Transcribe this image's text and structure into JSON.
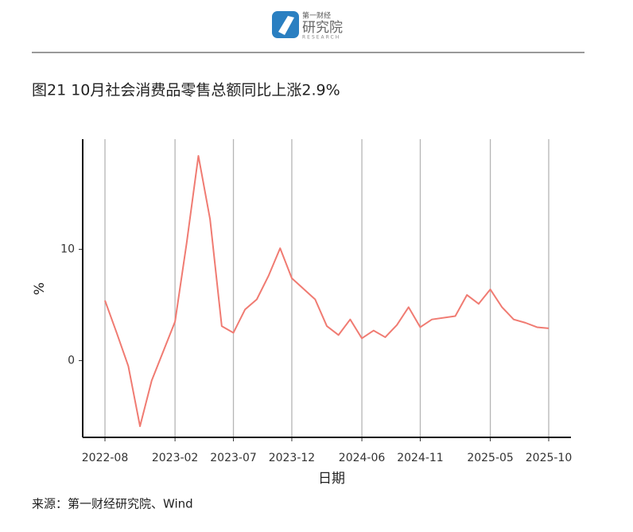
{
  "header": {
    "logo_top": "第一财经",
    "logo_main": "研究院",
    "logo_sub": "RESEARCH"
  },
  "chart_data": {
    "type": "line",
    "title": "图21 10月社会消费品零售总额同比上涨2.9%",
    "x_label": "日期",
    "y_label": "%",
    "x": [
      "2022-08",
      "2022-09",
      "2022-10",
      "2022-11",
      "2022-12",
      "2023-02",
      "2023-03",
      "2023-04",
      "2023-05",
      "2023-06",
      "2023-07",
      "2023-08",
      "2023-09",
      "2023-10",
      "2023-11",
      "2023-12",
      "2024-02",
      "2024-03",
      "2024-04",
      "2024-05",
      "2024-06",
      "2024-07",
      "2024-08",
      "2024-09",
      "2024-10",
      "2024-11",
      "2024-12",
      "2025-02",
      "2025-03",
      "2025-04",
      "2025-05",
      "2025-06",
      "2025-07",
      "2025-08",
      "2025-09",
      "2025-10"
    ],
    "series": [
      {
        "name": "社会消费品零售总额同比",
        "color": "#f07b72",
        "values": [
          5.4,
          2.5,
          -0.5,
          -5.9,
          -1.8,
          3.5,
          10.6,
          18.4,
          12.7,
          3.1,
          2.5,
          4.6,
          5.5,
          7.6,
          10.1,
          7.4,
          5.5,
          3.1,
          2.3,
          3.7,
          2.0,
          2.7,
          2.1,
          3.2,
          4.8,
          3.0,
          3.7,
          4.0,
          5.9,
          5.1,
          6.4,
          4.8,
          3.7,
          3.4,
          3.0,
          2.9
        ]
      }
    ],
    "xticks": [
      "2022-08",
      "2023-02",
      "2023-07",
      "2023-12",
      "2024-06",
      "2024-11",
      "2025-05",
      "2025-10"
    ],
    "ylim": [
      -6.9,
      19.9
    ],
    "yticks": [
      0,
      10
    ],
    "grid": "x",
    "source": "来源：第一财经研究院、Wind"
  }
}
